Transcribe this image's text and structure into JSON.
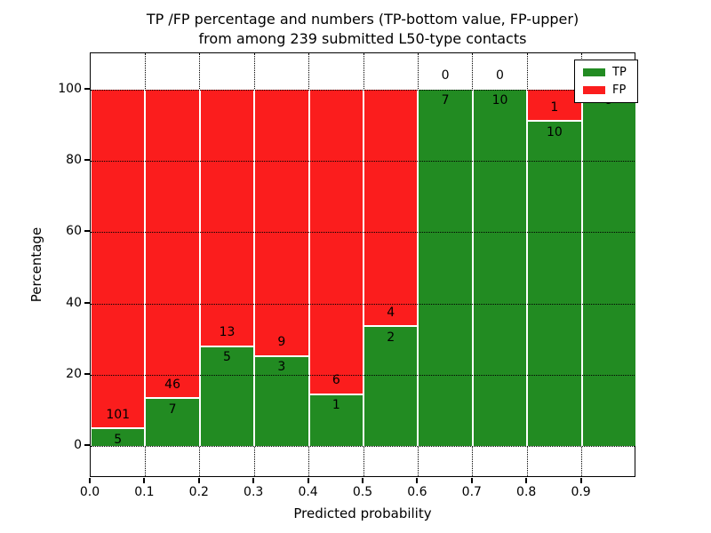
{
  "title": {
    "line1": "TP /FP percentage and numbers (TP-bottom value, FP-upper)",
    "line2": "from among 239 submitted L50-type contacts"
  },
  "axes": {
    "xlabel": "Predicted probability",
    "ylabel": "Percentage",
    "x_ticks": [
      "0.0",
      "0.1",
      "0.2",
      "0.3",
      "0.4",
      "0.5",
      "0.6",
      "0.7",
      "0.8",
      "0.9"
    ],
    "y_ticks": [
      "0",
      "20",
      "40",
      "60",
      "80",
      "100"
    ]
  },
  "legend": {
    "items": [
      {
        "label": "TP",
        "color": "#228B22"
      },
      {
        "label": "FP",
        "color": "#FB1D1D"
      }
    ]
  },
  "chart_data": {
    "type": "bar",
    "stacked": true,
    "normalized_to_percent": true,
    "title": "TP /FP percentage and numbers (TP-bottom value, FP-upper) from among 239 submitted L50-type contacts",
    "xlabel": "Predicted probability",
    "ylabel": "Percentage",
    "xlim": [
      0.0,
      1.0
    ],
    "ylim": [
      -9,
      110
    ],
    "grid": "dotted",
    "legend_position": "upper-right",
    "total_submitted_contacts": 239,
    "colors": {
      "tp": "#228B22",
      "fp": "#FB1D1D"
    },
    "bins": [
      {
        "x0": 0.0,
        "x1": 0.1,
        "tp_count": 5,
        "fp_count": 101,
        "tp_pct": 4.7,
        "fp_pct": 95.3,
        "tp_label": "5",
        "fp_label": "101"
      },
      {
        "x0": 0.1,
        "x1": 0.2,
        "tp_count": 7,
        "fp_count": 46,
        "tp_pct": 13.2,
        "fp_pct": 86.8,
        "tp_label": "7",
        "fp_label": "46"
      },
      {
        "x0": 0.2,
        "x1": 0.3,
        "tp_count": 5,
        "fp_count": 13,
        "tp_pct": 27.8,
        "fp_pct": 72.2,
        "tp_label": "5",
        "fp_label": "13"
      },
      {
        "x0": 0.3,
        "x1": 0.4,
        "tp_count": 3,
        "fp_count": 9,
        "tp_pct": 25.0,
        "fp_pct": 75.0,
        "tp_label": "3",
        "fp_label": "9"
      },
      {
        "x0": 0.4,
        "x1": 0.5,
        "tp_count": 1,
        "fp_count": 6,
        "tp_pct": 14.3,
        "fp_pct": 85.7,
        "tp_label": "1",
        "fp_label": "6"
      },
      {
        "x0": 0.5,
        "x1": 0.6,
        "tp_count": 2,
        "fp_count": 4,
        "tp_pct": 33.3,
        "fp_pct": 66.7,
        "tp_label": "2",
        "fp_label": "4"
      },
      {
        "x0": 0.6,
        "x1": 0.7,
        "tp_count": 7,
        "fp_count": 0,
        "tp_pct": 100,
        "fp_pct": 0,
        "tp_label": "7",
        "fp_label": "0"
      },
      {
        "x0": 0.7,
        "x1": 0.8,
        "tp_count": 10,
        "fp_count": 0,
        "tp_pct": 100,
        "fp_pct": 0,
        "tp_label": "10",
        "fp_label": "0"
      },
      {
        "x0": 0.8,
        "x1": 0.9,
        "tp_count": 10,
        "fp_count": 1,
        "tp_pct": 90.9,
        "fp_pct": 9.1,
        "tp_label": "10",
        "fp_label": "1"
      },
      {
        "x0": 0.9,
        "x1": 1.0,
        "tp_count": 9,
        "fp_count": 0,
        "tp_pct": 100,
        "fp_pct": 0,
        "tp_label": "9",
        "fp_label": null
      }
    ]
  }
}
